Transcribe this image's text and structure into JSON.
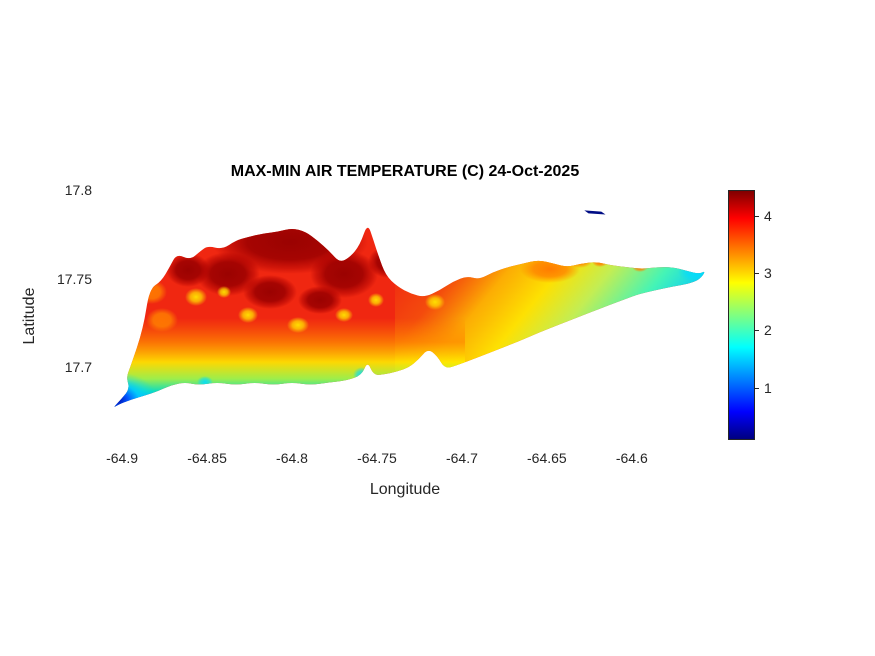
{
  "chart_data": {
    "type": "heatmap",
    "title": "MAX-MIN AIR TEMPERATURE (C) 24-Oct-2025",
    "xlabel": "Longitude",
    "ylabel": "Latitude",
    "x_ticks": [
      -64.9,
      -64.85,
      -64.8,
      -64.75,
      -64.7,
      -64.65,
      -64.6
    ],
    "y_ticks": [
      17.7,
      17.75,
      17.8
    ],
    "xlim": [
      -64.913,
      -64.554
    ],
    "ylim": [
      17.659,
      17.8
    ],
    "grid": false,
    "colormap": "jet",
    "colorbar_ticks": [
      4,
      3,
      2,
      1
    ],
    "color_range": [
      0.09,
      4.45
    ],
    "units": "C",
    "island_outline": [
      [
        -64.895,
        17.7005
      ],
      [
        -64.8875,
        17.722
      ],
      [
        -64.884,
        17.744
      ],
      [
        -64.877,
        17.7485
      ],
      [
        -64.872,
        17.7565
      ],
      [
        -64.868,
        17.764
      ],
      [
        -64.86,
        17.7605
      ],
      [
        -64.854,
        17.7655
      ],
      [
        -64.8495,
        17.7685
      ],
      [
        -64.841,
        17.7665
      ],
      [
        -64.833,
        17.7715
      ],
      [
        -64.826,
        17.7735
      ],
      [
        -64.817,
        17.7755
      ],
      [
        -64.808,
        17.7765
      ],
      [
        -64.8,
        17.7785
      ],
      [
        -64.792,
        17.7765
      ],
      [
        -64.785,
        17.7715
      ],
      [
        -64.778,
        17.7655
      ],
      [
        -64.772,
        17.759
      ],
      [
        -64.766,
        17.762
      ],
      [
        -64.76,
        17.769
      ],
      [
        -64.7555,
        17.7815
      ],
      [
        -64.752,
        17.7715
      ],
      [
        -64.749,
        17.7625
      ],
      [
        -64.745,
        17.752
      ],
      [
        -64.738,
        17.7455
      ],
      [
        -64.73,
        17.7415
      ],
      [
        -64.722,
        17.7395
      ],
      [
        -64.713,
        17.7435
      ],
      [
        -64.705,
        17.7485
      ],
      [
        -64.697,
        17.7515
      ],
      [
        -64.69,
        17.7495
      ],
      [
        -64.682,
        17.7535
      ],
      [
        -64.673,
        17.7565
      ],
      [
        -64.664,
        17.7585
      ],
      [
        -64.655,
        17.7605
      ],
      [
        -64.646,
        17.7585
      ],
      [
        -64.638,
        17.7565
      ],
      [
        -64.63,
        17.7585
      ],
      [
        -64.621,
        17.7595
      ],
      [
        -64.612,
        17.7575
      ],
      [
        -64.603,
        17.7565
      ],
      [
        -64.594,
        17.7555
      ],
      [
        -64.585,
        17.7565
      ],
      [
        -64.576,
        17.7565
      ],
      [
        -64.568,
        17.7545
      ],
      [
        -64.5605,
        17.7525
      ],
      [
        -64.5565,
        17.7545
      ],
      [
        -64.56,
        17.7495
      ],
      [
        -64.567,
        17.747
      ],
      [
        -64.576,
        17.7455
      ],
      [
        -64.586,
        17.7435
      ],
      [
        -64.597,
        17.741
      ],
      [
        -64.608,
        17.737
      ],
      [
        -64.619,
        17.733
      ],
      [
        -64.631,
        17.7285
      ],
      [
        -64.643,
        17.724
      ],
      [
        -64.655,
        17.7195
      ],
      [
        -64.667,
        17.7145
      ],
      [
        -64.679,
        17.71
      ],
      [
        -64.691,
        17.7055
      ],
      [
        -64.702,
        17.7015
      ],
      [
        -64.71,
        17.699
      ],
      [
        -64.7145,
        17.7065
      ],
      [
        -64.72,
        17.7105
      ],
      [
        -64.7255,
        17.7045
      ],
      [
        -64.731,
        17.7
      ],
      [
        -64.7385,
        17.6975
      ],
      [
        -64.746,
        17.696
      ],
      [
        -64.752,
        17.6955
      ],
      [
        -64.7555,
        17.7035
      ],
      [
        -64.759,
        17.6955
      ],
      [
        -64.768,
        17.6925
      ],
      [
        -64.778,
        17.6915
      ],
      [
        -64.789,
        17.69
      ],
      [
        -64.8,
        17.6915
      ],
      [
        -64.811,
        17.69
      ],
      [
        -64.822,
        17.6915
      ],
      [
        -64.833,
        17.69
      ],
      [
        -64.844,
        17.6915
      ],
      [
        -64.855,
        17.69
      ],
      [
        -64.863,
        17.6915
      ],
      [
        -64.871,
        17.69
      ],
      [
        -64.879,
        17.6865
      ],
      [
        -64.887,
        17.684
      ],
      [
        -64.8955,
        17.6815
      ],
      [
        -64.902,
        17.679
      ],
      [
        -64.9055,
        17.677
      ],
      [
        -64.9,
        17.6825
      ],
      [
        -64.8955,
        17.688
      ],
      [
        -64.8975,
        17.6945
      ]
    ],
    "islets": [
      [
        [
          -64.628,
          17.7885
        ],
        [
          -64.618,
          17.7878
        ],
        [
          -64.6155,
          17.7862
        ],
        [
          -64.6255,
          17.7868
        ]
      ]
    ],
    "sample_points": [
      {
        "lon": -64.8,
        "lat": 17.775,
        "value": 4.5
      },
      {
        "lon": -64.78,
        "lat": 17.77,
        "value": 4.4
      },
      {
        "lon": -64.84,
        "lat": 17.755,
        "value": 4.3
      },
      {
        "lon": -64.86,
        "lat": 17.73,
        "value": 4.0
      },
      {
        "lon": -64.82,
        "lat": 17.73,
        "value": 4.1
      },
      {
        "lon": -64.75,
        "lat": 17.75,
        "value": 4.2
      },
      {
        "lon": -64.73,
        "lat": 17.73,
        "value": 3.9
      },
      {
        "lon": -64.84,
        "lat": 17.735,
        "value": 3.3
      },
      {
        "lon": -64.81,
        "lat": 17.715,
        "value": 3.2
      },
      {
        "lon": -64.8,
        "lat": 17.695,
        "value": 2.9
      },
      {
        "lon": -64.85,
        "lat": 17.69,
        "value": 2.8
      },
      {
        "lon": -64.88,
        "lat": 17.685,
        "value": 2.0
      },
      {
        "lon": -64.895,
        "lat": 17.68,
        "value": 1.2
      },
      {
        "lon": -64.905,
        "lat": 17.677,
        "value": 0.3
      },
      {
        "lon": -64.72,
        "lat": 17.71,
        "value": 2.5
      },
      {
        "lon": -64.7,
        "lat": 17.705,
        "value": 2.2
      },
      {
        "lon": -64.7,
        "lat": 17.75,
        "value": 3.8
      },
      {
        "lon": -64.66,
        "lat": 17.755,
        "value": 3.6
      },
      {
        "lon": -64.65,
        "lat": 17.74,
        "value": 3.1
      },
      {
        "lon": -64.64,
        "lat": 17.728,
        "value": 2.6
      },
      {
        "lon": -64.62,
        "lat": 17.755,
        "value": 3.3
      },
      {
        "lon": -64.61,
        "lat": 17.74,
        "value": 2.4
      },
      {
        "lon": -64.58,
        "lat": 17.75,
        "value": 2.1
      },
      {
        "lon": -64.557,
        "lat": 17.754,
        "value": 1.5
      },
      {
        "lon": -64.622,
        "lat": 17.788,
        "value": 0.3
      }
    ]
  }
}
